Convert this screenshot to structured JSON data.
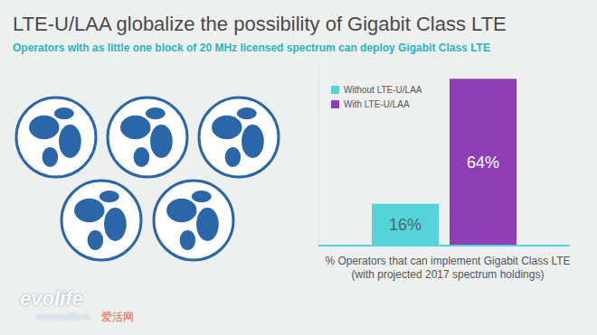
{
  "chart_data": {
    "type": "bar",
    "title": "LTE-U/LAA globalize the possibility of Gigabit Class LTE",
    "subtitle": "Operators with as little one block of 20 MHz licensed spectrum can deploy Gigabit Class LTE",
    "x_label": "% Operators that can implement Gigabit Class LTE\n(with projected 2017 spectrum holdings)",
    "categories": [
      null
    ],
    "series": [
      {
        "name": "Without LTE-U/LAA",
        "color": "#55d3d8",
        "values": [
          16
        ],
        "value_labels": [
          "16%"
        ]
      },
      {
        "name": "With LTE-U/LAA",
        "color": "#8e3fb5",
        "values": [
          64
        ],
        "value_labels": [
          "64%"
        ]
      }
    ],
    "ylim": [
      0,
      70
    ],
    "tick_labels": false,
    "data_labels": true,
    "legend": "upper left",
    "annotations": [
      "evolife",
      "www.evolife.cn",
      "爱活网"
    ]
  }
}
